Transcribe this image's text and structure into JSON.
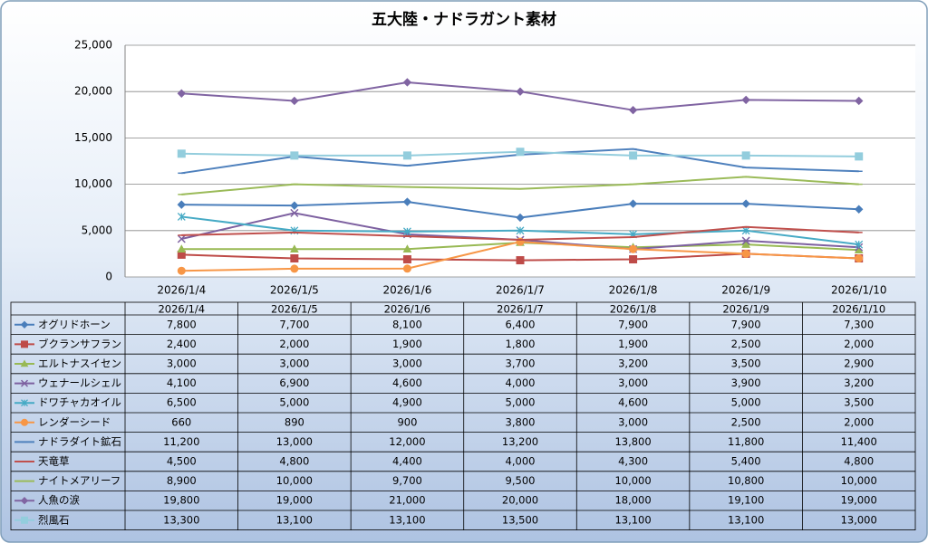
{
  "chart_data": {
    "type": "line",
    "title": "五大陸・ナドラガント素材",
    "categories": [
      "2026/1/4",
      "2026/1/5",
      "2026/1/6",
      "2026/1/7",
      "2026/1/8",
      "2026/1/9",
      "2026/1/10"
    ],
    "ylim": [
      0,
      25000
    ],
    "yticks": [
      0,
      {
        "value": 5000,
        "label": "5,000"
      },
      {
        "value": 10000,
        "label": "10,000"
      },
      {
        "value": 15000,
        "label": "15,000"
      },
      {
        "value": 20000,
        "label": "20,000"
      },
      {
        "value": 25000,
        "label": "25,000"
      }
    ],
    "grid": true,
    "series": [
      {
        "name": "オグリドホーン",
        "color": "#4a7ebb",
        "marker": "diamond",
        "values": [
          7800,
          7700,
          8100,
          6400,
          7900,
          7900,
          7300
        ],
        "value_labels": [
          "7,800",
          "7,700",
          "8,100",
          "6,400",
          "7,900",
          "7,900",
          "7,300"
        ]
      },
      {
        "name": "ブクランサフラン",
        "color": "#be4b48",
        "marker": "square",
        "values": [
          2400,
          2000,
          1900,
          1800,
          1900,
          2500,
          2000
        ],
        "value_labels": [
          "2,400",
          "2,000",
          "1,900",
          "1,800",
          "1,900",
          "2,500",
          "2,000"
        ]
      },
      {
        "name": "エルトナスイセン",
        "color": "#98b954",
        "marker": "triangle",
        "values": [
          3000,
          3000,
          3000,
          3700,
          3200,
          3500,
          2900
        ],
        "value_labels": [
          "3,000",
          "3,000",
          "3,000",
          "3,700",
          "3,200",
          "3,500",
          "2,900"
        ]
      },
      {
        "name": "ウェナールシェル",
        "color": "#7d60a0",
        "marker": "x",
        "values": [
          4100,
          6900,
          4600,
          4000,
          3000,
          3900,
          3200
        ],
        "value_labels": [
          "4,100",
          "6,900",
          "4,600",
          "4,000",
          "3,000",
          "3,900",
          "3,200"
        ]
      },
      {
        "name": "ドワチャカオイル",
        "color": "#46aac5",
        "marker": "star",
        "values": [
          6500,
          5000,
          4900,
          5000,
          4600,
          5000,
          3500
        ],
        "value_labels": [
          "6,500",
          "5,000",
          "4,900",
          "5,000",
          "4,600",
          "5,000",
          "3,500"
        ]
      },
      {
        "name": "レンダーシード",
        "color": "#f79646",
        "marker": "circle",
        "values": [
          660,
          890,
          900,
          3800,
          3000,
          2500,
          2000
        ],
        "value_labels": [
          "660",
          "890",
          "900",
          "3,800",
          "3,000",
          "2,500",
          "2,000"
        ]
      },
      {
        "name": "ナドラダイト鉱石",
        "color": "#4f81bd",
        "marker": "dash",
        "values": [
          11200,
          13000,
          12000,
          13200,
          13800,
          11800,
          11400
        ],
        "value_labels": [
          "11,200",
          "13,000",
          "12,000",
          "13,200",
          "13,800",
          "11,800",
          "11,400"
        ]
      },
      {
        "name": "天竜草",
        "color": "#c0504d",
        "marker": "dash",
        "values": [
          4500,
          4800,
          4400,
          4000,
          4300,
          5400,
          4800
        ],
        "value_labels": [
          "4,500",
          "4,800",
          "4,400",
          "4,000",
          "4,300",
          "5,400",
          "4,800"
        ]
      },
      {
        "name": "ナイトメアリーフ",
        "color": "#9bbb59",
        "marker": "dash",
        "values": [
          8900,
          10000,
          9700,
          9500,
          10000,
          10800,
          10000
        ],
        "value_labels": [
          "8,900",
          "10,000",
          "9,700",
          "9,500",
          "10,000",
          "10,800",
          "10,000"
        ]
      },
      {
        "name": "人魚の涙",
        "color": "#8064a2",
        "marker": "diamond",
        "values": [
          19800,
          19000,
          21000,
          20000,
          18000,
          19100,
          19000
        ],
        "value_labels": [
          "19,800",
          "19,000",
          "21,000",
          "20,000",
          "18,000",
          "19,100",
          "19,000"
        ]
      },
      {
        "name": "烈風石",
        "color": "#93cddd",
        "marker": "square",
        "values": [
          13300,
          13100,
          13100,
          13500,
          13100,
          13100,
          13000
        ],
        "value_labels": [
          "13,300",
          "13,100",
          "13,100",
          "13,500",
          "13,100",
          "13,100",
          "13,000"
        ]
      }
    ]
  }
}
